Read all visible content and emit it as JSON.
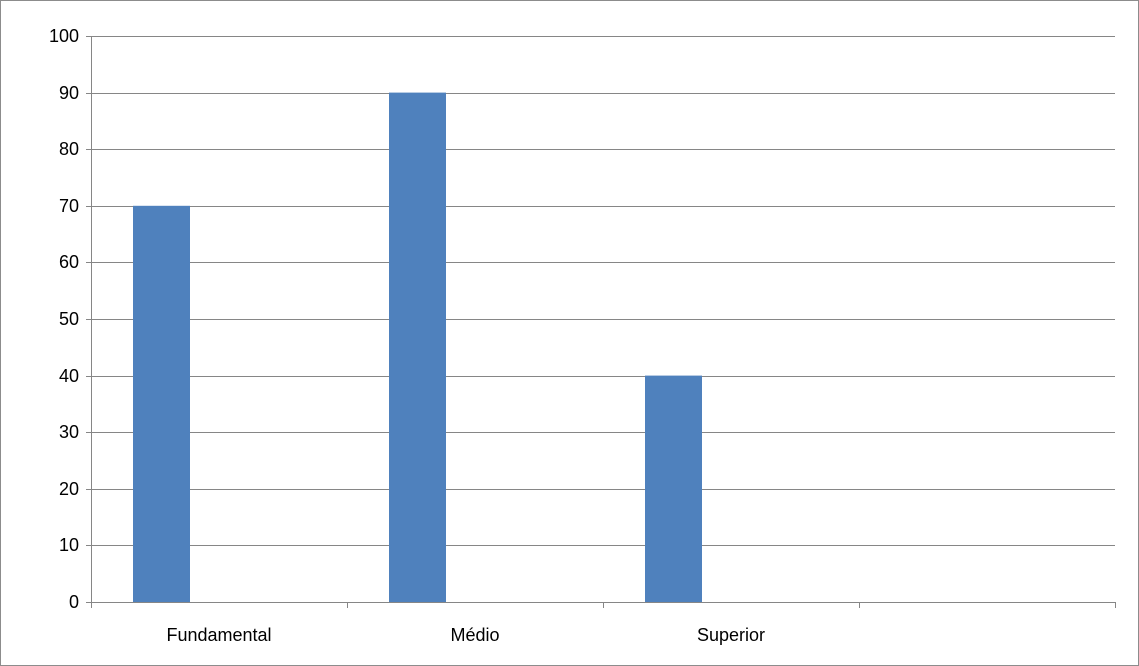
{
  "chart_data": {
    "type": "bar",
    "title": "",
    "xlabel": "",
    "ylabel": "",
    "categories": [
      "Fundamental",
      "Médio",
      "Superior",
      ""
    ],
    "series": [
      {
        "values": [
          70,
          90,
          40,
          null
        ]
      }
    ],
    "ylim": [
      0,
      100
    ],
    "yticks": [
      "0",
      "10",
      "20",
      "30",
      "40",
      "50",
      "60",
      "70",
      "80",
      "90",
      "100"
    ],
    "grid": "horizontal major gridlines",
    "legend": "none",
    "colors": {
      "bar": "#4f81bd",
      "grid": "#868686",
      "axis": "#868686",
      "frame": "#8c8c8c"
    }
  }
}
